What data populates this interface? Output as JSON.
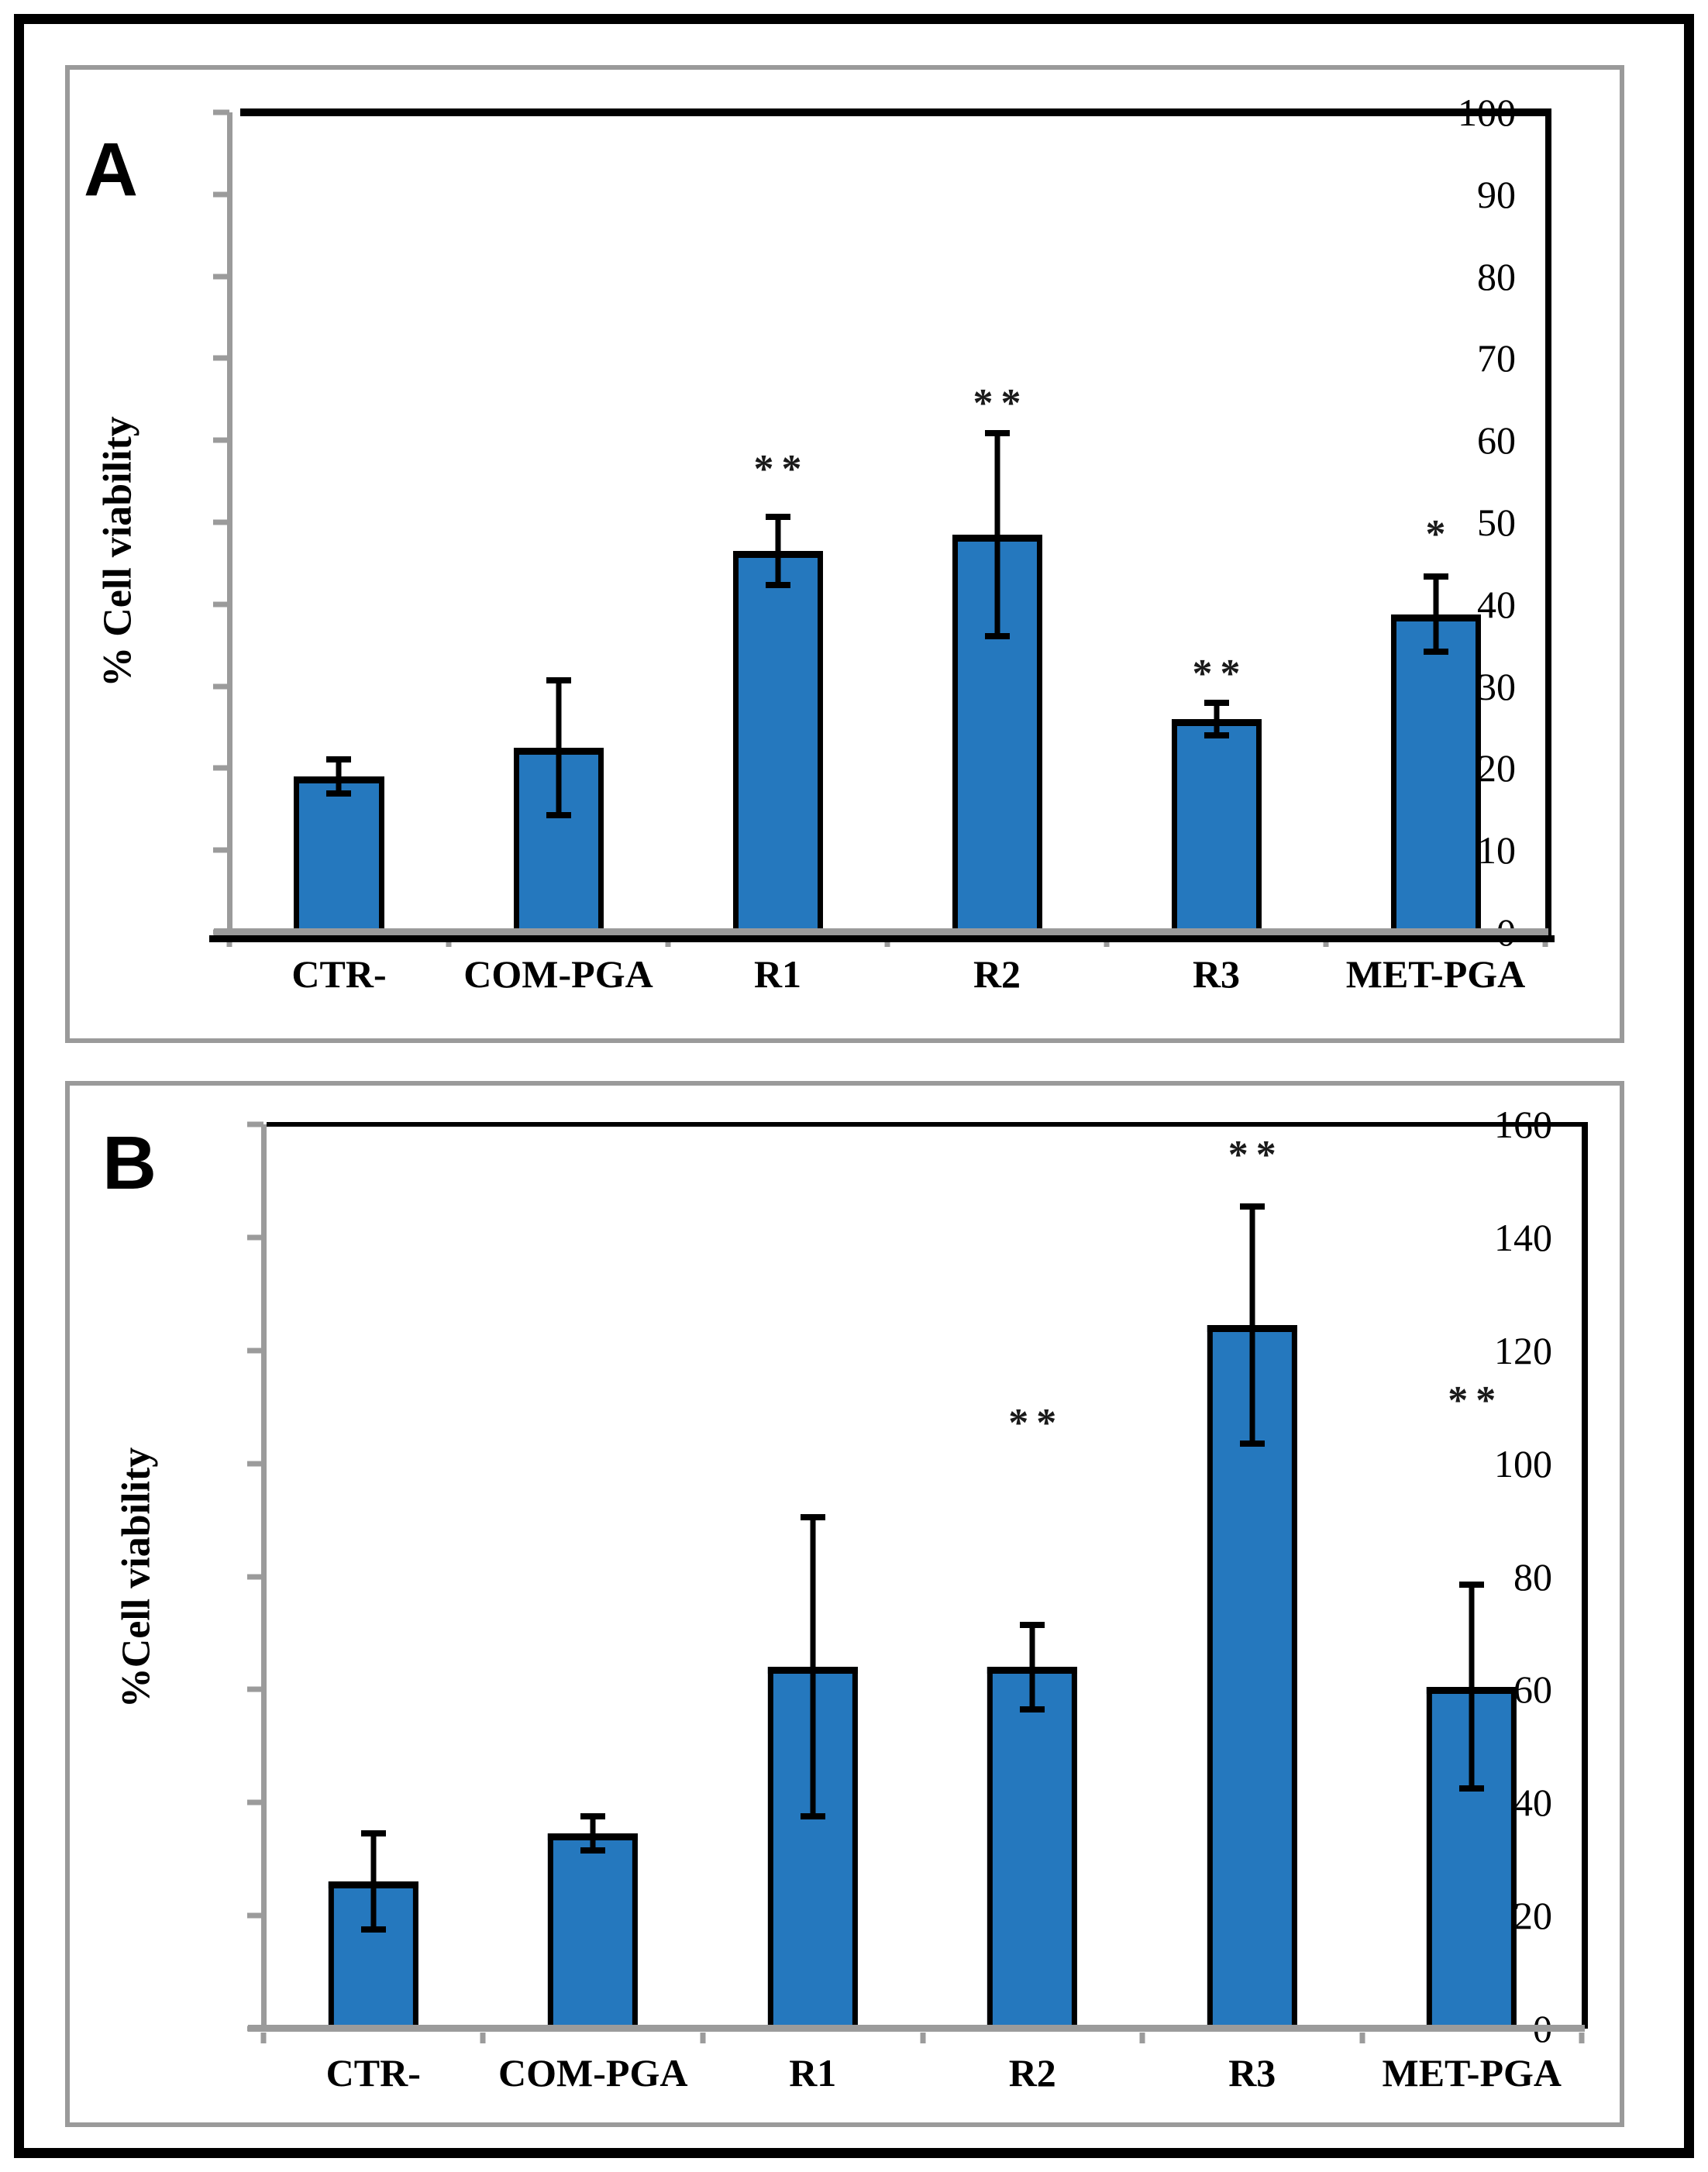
{
  "style": {
    "bar_fill": "#2578BE",
    "bar_border": "#000000",
    "axis_gray": "#9b9b9b",
    "panel_border": "#9a9a9a",
    "figure_border": "#000000",
    "significance_color": "#1a1a1a"
  },
  "chart_data": [
    {
      "panel": "A",
      "type": "bar",
      "title": "",
      "xlabel": "",
      "ylabel": "% Cell viability",
      "categories": [
        "CTR-",
        "COM-PGA",
        "R1",
        "R2",
        "R3",
        "MET-PGA"
      ],
      "values": [
        19,
        22.5,
        46.5,
        48.5,
        26,
        38.8
      ],
      "error_up": [
        2.1,
        8.2,
        4.2,
        12.4,
        2,
        4.6
      ],
      "error_down": [
        2.1,
        8.2,
        4.2,
        12.4,
        2,
        4.6
      ],
      "significance": [
        "",
        "",
        "**",
        "**",
        "**",
        "*"
      ],
      "significance_y": [
        0,
        0,
        54,
        62,
        29,
        46
      ],
      "ylim": [
        0,
        100
      ],
      "ytick_step": 10,
      "yticks": [
        0,
        10,
        20,
        30,
        40,
        50,
        60,
        70,
        80,
        90,
        100
      ],
      "grid": false,
      "legend": null
    },
    {
      "panel": "B",
      "type": "bar",
      "title": "",
      "xlabel": "",
      "ylabel": "%Cell viability",
      "categories": [
        "CTR-",
        "COM-PGA",
        "R1",
        "R2",
        "R3",
        "MET-PGA"
      ],
      "values": [
        26,
        34.5,
        64,
        64,
        124.5,
        60.5
      ],
      "error_up": [
        8.5,
        3,
        26.5,
        7.5,
        21,
        18
      ],
      "error_down": [
        8.5,
        3,
        26.5,
        7.5,
        21,
        18
      ],
      "significance": [
        "",
        "",
        "",
        "**",
        "**",
        "**"
      ],
      "significance_y": [
        0,
        0,
        0,
        103.5,
        151,
        107.5
      ],
      "ylim": [
        0,
        160
      ],
      "ytick_step": 20,
      "yticks": [
        0,
        20,
        40,
        60,
        80,
        100,
        120,
        140,
        160
      ],
      "grid": false,
      "legend": null
    }
  ]
}
